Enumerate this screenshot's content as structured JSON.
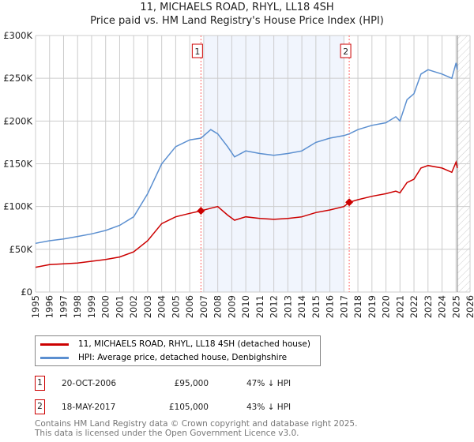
{
  "title_line1": "11, MICHAELS ROAD, RHYL, LL18 4SH",
  "title_line2": "Price paid vs. HM Land Registry's House Price Index (HPI)",
  "chart_data": {
    "type": "line",
    "ylim": [
      0,
      300000
    ],
    "xlim": [
      1995,
      2026
    ],
    "yticks": [
      0,
      50000,
      100000,
      150000,
      200000,
      250000,
      300000
    ],
    "ytick_labels": [
      "£0",
      "£50K",
      "£100K",
      "£150K",
      "£200K",
      "£250K",
      "£300K"
    ],
    "xticks": [
      1995,
      1996,
      1997,
      1998,
      1999,
      2000,
      2001,
      2002,
      2003,
      2004,
      2005,
      2006,
      2007,
      2008,
      2009,
      2010,
      2011,
      2012,
      2013,
      2014,
      2015,
      2016,
      2017,
      2018,
      2019,
      2020,
      2021,
      2022,
      2023,
      2024,
      2025,
      2026
    ],
    "grid": true,
    "shaded_range": [
      2007.0,
      2017.0
    ],
    "hatched_from": 2025.1,
    "series": [
      {
        "name": "11, MICHAELS ROAD, RHYL, LL18 4SH (detached house)",
        "color": "#cc0000",
        "x": [
          1995,
          1996,
          1997,
          1998,
          1999,
          2000,
          2001,
          2002,
          2003,
          2004,
          2005,
          2006,
          2006.8,
          2007.5,
          2008,
          2008.7,
          2009.2,
          2010,
          2011,
          2012,
          2013,
          2014,
          2015,
          2016,
          2017,
          2017.38,
          2018,
          2019,
          2020,
          2020.7,
          2021,
          2021.5,
          2022,
          2022.5,
          2023,
          2024,
          2024.7,
          2025,
          2025.1
        ],
        "y": [
          29000,
          32000,
          33000,
          34000,
          36000,
          38000,
          41000,
          47000,
          60000,
          80000,
          88000,
          92000,
          95000,
          98000,
          100000,
          90000,
          84000,
          88000,
          86000,
          85000,
          86000,
          88000,
          93000,
          96000,
          100000,
          105000,
          108000,
          112000,
          115000,
          118000,
          116000,
          128000,
          132000,
          145000,
          148000,
          145000,
          140000,
          152000,
          145000
        ]
      },
      {
        "name": "HPI: Average price, detached house, Denbighshire",
        "color": "#5b8fd0",
        "x": [
          1995,
          1996,
          1997,
          1998,
          1999,
          2000,
          2001,
          2002,
          2003,
          2004,
          2005,
          2006,
          2006.8,
          2007.5,
          2008,
          2008.7,
          2009.2,
          2010,
          2011,
          2012,
          2013,
          2014,
          2015,
          2016,
          2017,
          2017.38,
          2018,
          2019,
          2020,
          2020.7,
          2021,
          2021.5,
          2022,
          2022.5,
          2023,
          2024,
          2024.7,
          2025,
          2025.1
        ],
        "y": [
          57000,
          60000,
          62000,
          65000,
          68000,
          72000,
          78000,
          88000,
          115000,
          150000,
          170000,
          178000,
          180000,
          190000,
          185000,
          170000,
          158000,
          165000,
          162000,
          160000,
          162000,
          165000,
          175000,
          180000,
          183000,
          185000,
          190000,
          195000,
          198000,
          205000,
          200000,
          225000,
          232000,
          255000,
          260000,
          255000,
          250000,
          268000,
          260000
        ]
      }
    ],
    "markers": [
      {
        "label": "1",
        "x": 2006.8,
        "y": 95000
      },
      {
        "label": "2",
        "x": 2017.38,
        "y": 105000
      }
    ]
  },
  "legend": {
    "property": "11, MICHAELS ROAD, RHYL, LL18 4SH (detached house)",
    "hpi": "HPI: Average price, detached house, Denbighshire"
  },
  "transactions": [
    {
      "num": "1",
      "date": "20-OCT-2006",
      "price": "£95,000",
      "hpi": "47% ↓ HPI"
    },
    {
      "num": "2",
      "date": "18-MAY-2017",
      "price": "£105,000",
      "hpi": "43% ↓ HPI"
    }
  ],
  "footer": {
    "line1": "Contains HM Land Registry data © Crown copyright and database right 2025.",
    "line2": "This data is licensed under the Open Government Licence v3.0."
  }
}
